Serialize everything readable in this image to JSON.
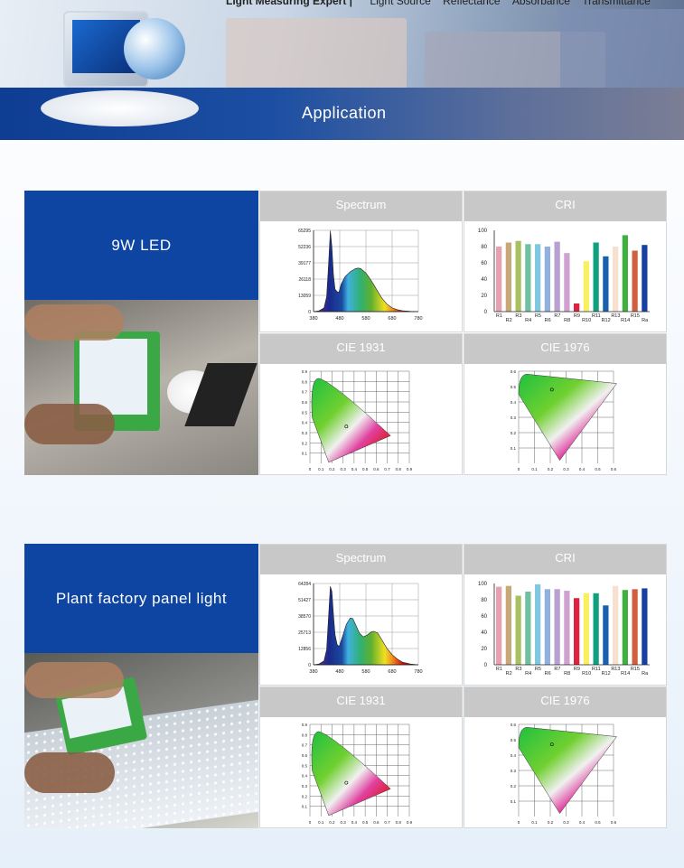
{
  "header": {
    "tagline": "Light Measuring Expert |",
    "nav": [
      "Light Source",
      "Reflectance",
      "Absorbance",
      "Transmittance"
    ],
    "banner": "Application"
  },
  "colors": {
    "brand": "#0e44a2",
    "cell_header": "#c8c8c8",
    "cri_bars": [
      "#e8a0b0",
      "#c8a878",
      "#a8c060",
      "#70c0a0",
      "#80c8e0",
      "#90b0e0",
      "#b8a0d0",
      "#d0a0d0",
      "#e02040",
      "#f8f060",
      "#10a080",
      "#1860b0",
      "#f8e0d0",
      "#40b040",
      "#d06040",
      "#1840a0"
    ]
  },
  "sections": [
    {
      "title": "9W LED",
      "labels": {
        "spectrum": "Spectrum",
        "cri": "CRI",
        "cie1931": "CIE 1931",
        "cie1976": "CIE 1976"
      }
    },
    {
      "title": "Plant factory panel light",
      "labels": {
        "spectrum": "Spectrum",
        "cri": "CRI",
        "cie1931": "CIE 1931",
        "cie1976": "CIE 1976"
      }
    }
  ],
  "chart_data": [
    {
      "type": "area",
      "section": "9W LED",
      "title": "Spectrum",
      "x_ticks": [
        380,
        480,
        580,
        680,
        780
      ],
      "y_ticks": [
        0,
        13059,
        26118,
        39177,
        52236,
        65295
      ],
      "xlim": [
        380,
        780
      ],
      "ylim": [
        0,
        65295
      ],
      "grid": true,
      "x": [
        380,
        400,
        420,
        430,
        438,
        444,
        450,
        456,
        462,
        470,
        477,
        485,
        500,
        520,
        540,
        550,
        560,
        580,
        600,
        620,
        640,
        660,
        680,
        700,
        720,
        750,
        780
      ],
      "y": [
        0,
        600,
        3000,
        12000,
        40000,
        65000,
        52000,
        30000,
        18000,
        16000,
        15500,
        22000,
        28000,
        32000,
        34500,
        35000,
        34500,
        31000,
        25000,
        18000,
        11000,
        6000,
        3000,
        1500,
        700,
        200,
        0
      ]
    },
    {
      "type": "bar",
      "section": "9W LED",
      "title": "CRI",
      "categories": [
        "R1",
        "R2",
        "R3",
        "R4",
        "R5",
        "R6",
        "R7",
        "R8",
        "R9",
        "R10",
        "R11",
        "R12",
        "R13",
        "R14",
        "R15",
        "Ra"
      ],
      "values": [
        80,
        85,
        87,
        83,
        83,
        80,
        86,
        72,
        10,
        62,
        85,
        68,
        80,
        94,
        75,
        82
      ],
      "y_ticks": [
        0,
        20,
        40,
        60,
        80,
        100
      ],
      "ylim": [
        0,
        100
      ]
    },
    {
      "type": "scatter",
      "section": "9W LED",
      "title": "CIE 1931",
      "x_ticks": [
        "0",
        "0.1",
        "0.2",
        "0.3",
        "0.4",
        "0.5",
        "0.6",
        "0.7",
        "0.8",
        "0.9"
      ],
      "y_ticks": [
        "0.1",
        "0.2",
        "0.3",
        "0.4",
        "0.5",
        "0.6",
        "0.7",
        "0.8",
        "0.9"
      ],
      "point": [
        0.33,
        0.36
      ]
    },
    {
      "type": "scatter",
      "section": "9W LED",
      "title": "CIE 1976",
      "x_ticks": [
        "0",
        "0.1",
        "0.2",
        "0.3",
        "0.4",
        "0.5",
        "0.6"
      ],
      "y_ticks": [
        "0.1",
        "0.2",
        "0.3",
        "0.4",
        "0.5",
        "0.6"
      ],
      "point": [
        0.21,
        0.48
      ]
    },
    {
      "type": "area",
      "section": "Plant factory panel light",
      "title": "Spectrum",
      "x_ticks": [
        380,
        480,
        580,
        680,
        780
      ],
      "y_ticks": [
        0,
        12856,
        25713,
        38570,
        51427,
        64284
      ],
      "xlim": [
        380,
        780
      ],
      "ylim": [
        0,
        64284
      ],
      "grid": true,
      "x": [
        380,
        400,
        420,
        430,
        438,
        444,
        450,
        456,
        462,
        470,
        478,
        490,
        505,
        520,
        530,
        540,
        555,
        570,
        585,
        600,
        610,
        625,
        640,
        660,
        680,
        700,
        720,
        750,
        780
      ],
      "y": [
        0,
        600,
        3000,
        12000,
        40000,
        62000,
        58000,
        40000,
        24000,
        16000,
        14500,
        22000,
        32000,
        37000,
        36500,
        32000,
        25000,
        22000,
        23500,
        26000,
        26500,
        25000,
        20000,
        13000,
        8000,
        4500,
        2000,
        600,
        0
      ]
    },
    {
      "type": "bar",
      "section": "Plant factory panel light",
      "title": "CRI",
      "categories": [
        "R1",
        "R2",
        "R3",
        "R4",
        "R5",
        "R6",
        "R7",
        "R8",
        "R9",
        "R10",
        "R11",
        "R12",
        "R13",
        "R14",
        "R15",
        "Ra"
      ],
      "values": [
        96,
        97,
        85,
        90,
        99,
        93,
        93,
        91,
        82,
        88,
        88,
        73,
        97,
        92,
        93,
        94
      ],
      "y_ticks": [
        0,
        20,
        40,
        60,
        80,
        100
      ],
      "ylim": [
        0,
        100
      ]
    },
    {
      "type": "scatter",
      "section": "Plant factory panel light",
      "title": "CIE 1931",
      "x_ticks": [
        "0",
        "0.1",
        "0.2",
        "0.3",
        "0.4",
        "0.5",
        "0.6",
        "0.7",
        "0.8",
        "0.9"
      ],
      "y_ticks": [
        "0.1",
        "0.2",
        "0.3",
        "0.4",
        "0.5",
        "0.6",
        "0.7",
        "0.8",
        "0.9"
      ],
      "point": [
        0.33,
        0.33
      ]
    },
    {
      "type": "scatter",
      "section": "Plant factory panel light",
      "title": "CIE 1976",
      "x_ticks": [
        "0",
        "0.1",
        "0.2",
        "0.3",
        "0.4",
        "0.5",
        "0.6"
      ],
      "y_ticks": [
        "0.1",
        "0.2",
        "0.3",
        "0.4",
        "0.5",
        "0.6"
      ],
      "point": [
        0.21,
        0.47
      ]
    }
  ]
}
